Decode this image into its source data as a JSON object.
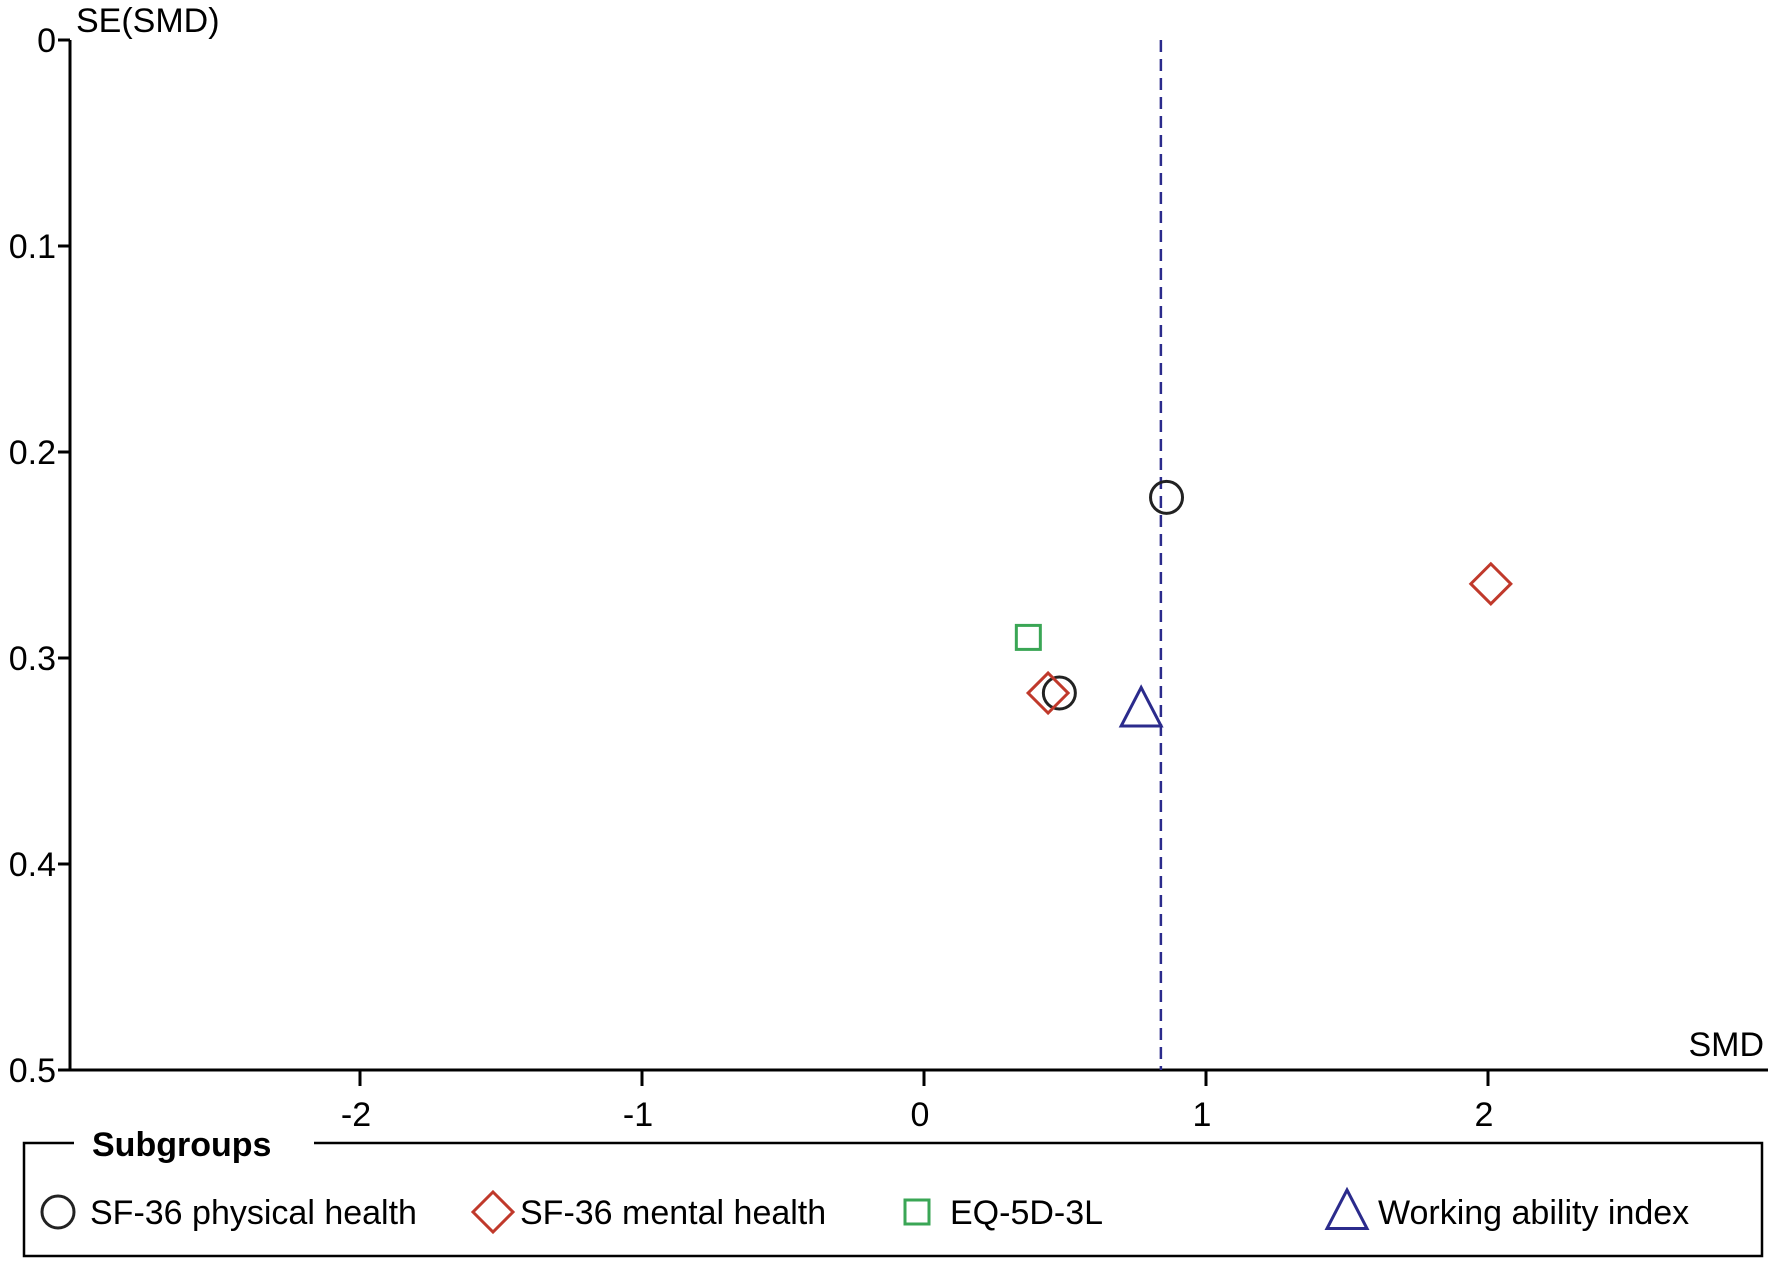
{
  "chart_data": {
    "type": "scatter",
    "title": "",
    "xlabel": "SMD",
    "ylabel": "SE(SMD)",
    "xlim": [
      -3,
      3
    ],
    "ylim": [
      0,
      0.5
    ],
    "y_inverted": true,
    "x_ticks": [
      -2,
      -1,
      0,
      1,
      2
    ],
    "x_tick_labels": [
      "-2",
      "-1",
      "0",
      "1",
      "2"
    ],
    "y_ticks": [
      0,
      0.1,
      0.2,
      0.3,
      0.4,
      0.5
    ],
    "y_tick_labels": [
      "0",
      "0.1",
      "0.2",
      "0.3",
      "0.4",
      "0.5"
    ],
    "grid": false,
    "reference_line": {
      "x": 0.84,
      "style": "dashed",
      "color": "#2b2b8c"
    },
    "legend": {
      "title": "Subgroups",
      "placement": "bottom"
    },
    "series": [
      {
        "name": "SF-36 physical health",
        "marker": "circle",
        "color": "#222222",
        "points": [
          {
            "x": 0.86,
            "y": 0.222
          },
          {
            "x": 0.48,
            "y": 0.317
          }
        ]
      },
      {
        "name": "SF-36 mental health",
        "marker": "diamond",
        "color": "#c0392b",
        "points": [
          {
            "x": 2.01,
            "y": 0.264
          },
          {
            "x": 0.44,
            "y": 0.317
          }
        ]
      },
      {
        "name": "EQ-5D-3L",
        "marker": "square",
        "color": "#3aa655",
        "points": [
          {
            "x": 0.37,
            "y": 0.29
          }
        ]
      },
      {
        "name": "Working ability index",
        "marker": "triangle",
        "color": "#2b2b8c",
        "points": [
          {
            "x": 0.77,
            "y": 0.325
          }
        ]
      }
    ]
  }
}
